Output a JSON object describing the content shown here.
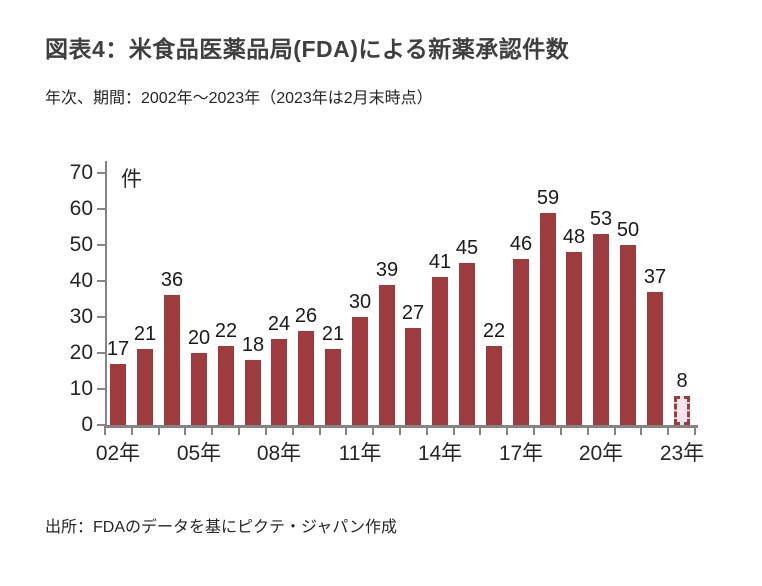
{
  "header": {
    "title": "図表4：米食品医薬品局(FDA)による新薬承認件数",
    "subtitle": "年次、期間：2002年～2023年（2023年は2月末時点）"
  },
  "footer": {
    "source": "出所：FDAのデータを基にピクテ・ジャパン作成"
  },
  "chart_data": {
    "type": "bar",
    "title": "図表4：米食品医薬品局(FDA)による新薬承認件数",
    "unit_label": "件",
    "values": [
      17,
      21,
      36,
      20,
      22,
      18,
      24,
      26,
      21,
      30,
      39,
      27,
      41,
      45,
      22,
      46,
      59,
      48,
      53,
      50,
      37,
      8
    ],
    "value_labels": [
      "17",
      "21",
      "36",
      "20",
      "22",
      "18",
      "24",
      "26",
      "21",
      "30",
      "39",
      "27",
      "41",
      "45",
      "22",
      "46",
      "59",
      "48",
      "53",
      "50",
      "37",
      "8"
    ],
    "x_ticks": [
      {
        "slot": 0,
        "label": "02年"
      },
      {
        "slot": 3,
        "label": "05年"
      },
      {
        "slot": 6,
        "label": "08年"
      },
      {
        "slot": 9,
        "label": "11年"
      },
      {
        "slot": 12,
        "label": "14年"
      },
      {
        "slot": 15,
        "label": "17年"
      },
      {
        "slot": 18,
        "label": "20年"
      },
      {
        "slot": 21,
        "label": "23年"
      }
    ],
    "ylim": [
      0,
      70
    ],
    "ytick_step": 10,
    "ytick_labels": [
      "0",
      "10",
      "20",
      "30",
      "40",
      "50",
      "60",
      "70"
    ],
    "grid": false,
    "legend": "none",
    "last_bar_style": "dashed-outline",
    "colors": {
      "bar": "#9e3b3e",
      "last_bar_fill": "#f3e5e9",
      "axis": "#848484",
      "value_label": "#1a1a1a",
      "tick_label": "#262626"
    }
  }
}
